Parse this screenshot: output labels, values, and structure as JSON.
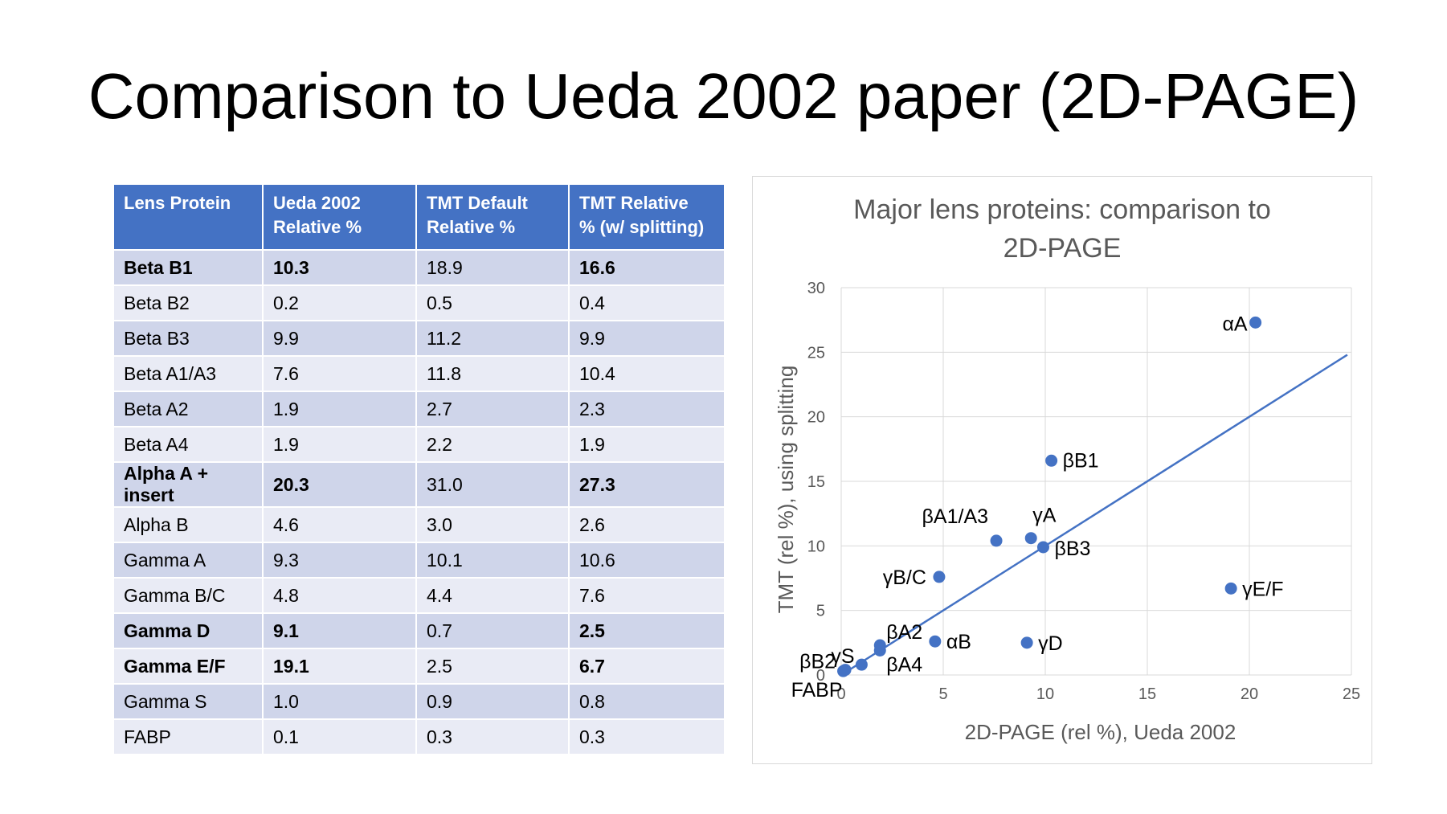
{
  "slide": {
    "title": "Comparison to Ueda 2002 paper (2D-PAGE)"
  },
  "table": {
    "headers": [
      [
        "Lens Protein",
        ""
      ],
      [
        "Ueda 2002",
        "Relative %"
      ],
      [
        "TMT Default",
        "Relative %"
      ],
      [
        "TMT Relative",
        "% (w/ splitting)"
      ]
    ],
    "rows": [
      {
        "bold": true,
        "cells": [
          "Beta B1",
          "10.3",
          "18.9",
          "16.6"
        ]
      },
      {
        "bold": false,
        "cells": [
          "Beta B2",
          "0.2",
          "0.5",
          "0.4"
        ]
      },
      {
        "bold": false,
        "cells": [
          "Beta B3",
          "9.9",
          "11.2",
          "9.9"
        ]
      },
      {
        "bold": false,
        "cells": [
          "Beta A1/A3",
          "7.6",
          "11.8",
          "10.4"
        ]
      },
      {
        "bold": false,
        "cells": [
          "Beta A2",
          "1.9",
          "2.7",
          "2.3"
        ]
      },
      {
        "bold": false,
        "cells": [
          "Beta A4",
          "1.9",
          "2.2",
          "1.9"
        ]
      },
      {
        "bold": true,
        "cells": [
          "Alpha A + insert",
          "20.3",
          "31.0",
          "27.3"
        ]
      },
      {
        "bold": false,
        "cells": [
          "Alpha B",
          "4.6",
          "3.0",
          "2.6"
        ]
      },
      {
        "bold": false,
        "cells": [
          "Gamma A",
          "9.3",
          "10.1",
          "10.6"
        ]
      },
      {
        "bold": false,
        "cells": [
          "Gamma B/C",
          "4.8",
          "4.4",
          "7.6"
        ]
      },
      {
        "bold": true,
        "cells": [
          "Gamma D",
          "9.1",
          "0.7",
          "2.5"
        ]
      },
      {
        "bold": true,
        "cells": [
          "Gamma E/F",
          "19.1",
          "2.5",
          "6.7"
        ]
      },
      {
        "bold": false,
        "cells": [
          "Gamma S",
          "1.0",
          "0.9",
          "0.8"
        ]
      },
      {
        "bold": false,
        "cells": [
          "FABP",
          "0.1",
          "0.3",
          "0.3"
        ]
      }
    ]
  },
  "chart_data": {
    "type": "scatter",
    "title": [
      "Major lens proteins: comparison to",
      "2D-PAGE"
    ],
    "xlabel": "2D-PAGE (rel %), Ueda 2002",
    "ylabel": "TMT (rel %), using splitting",
    "xlim": [
      0,
      25
    ],
    "ylim": [
      0,
      30
    ],
    "xticks": [
      0,
      5,
      10,
      15,
      20,
      25
    ],
    "yticks": [
      0,
      5,
      10,
      15,
      20,
      25,
      30
    ],
    "grid": true,
    "point_color": "#4472c4",
    "points": [
      {
        "label": "βB1",
        "x": 10.3,
        "y": 16.6
      },
      {
        "label": "βB2",
        "x": 0.2,
        "y": 0.4
      },
      {
        "label": "βB3",
        "x": 9.9,
        "y": 9.9
      },
      {
        "label": "βA1/A3",
        "x": 7.6,
        "y": 10.4
      },
      {
        "label": "βA2",
        "x": 1.9,
        "y": 2.3
      },
      {
        "label": "βA4",
        "x": 1.9,
        "y": 1.9
      },
      {
        "label": "αA",
        "x": 20.3,
        "y": 27.3
      },
      {
        "label": "αB",
        "x": 4.6,
        "y": 2.6
      },
      {
        "label": "γA",
        "x": 9.3,
        "y": 10.6
      },
      {
        "label": "γB/C",
        "x": 4.8,
        "y": 7.6
      },
      {
        "label": "γD",
        "x": 9.1,
        "y": 2.5
      },
      {
        "label": "γE/F",
        "x": 19.1,
        "y": 6.7
      },
      {
        "label": "γS",
        "x": 1.0,
        "y": 0.8
      },
      {
        "label": "FABP",
        "x": 0.1,
        "y": 0.3
      }
    ],
    "trendline": {
      "x": [
        0,
        24.8
      ],
      "y": [
        0,
        24.8
      ]
    }
  }
}
